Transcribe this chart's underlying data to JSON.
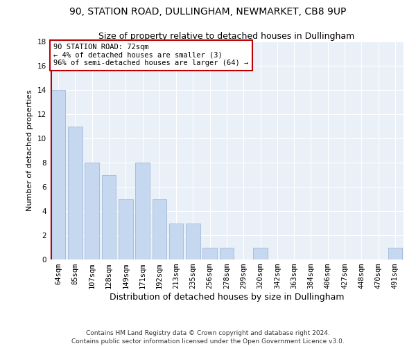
{
  "title": "90, STATION ROAD, DULLINGHAM, NEWMARKET, CB8 9UP",
  "subtitle": "Size of property relative to detached houses in Dullingham",
  "xlabel": "Distribution of detached houses by size in Dullingham",
  "ylabel": "Number of detached properties",
  "categories": [
    "64sqm",
    "85sqm",
    "107sqm",
    "128sqm",
    "149sqm",
    "171sqm",
    "192sqm",
    "213sqm",
    "235sqm",
    "256sqm",
    "278sqm",
    "299sqm",
    "320sqm",
    "342sqm",
    "363sqm",
    "384sqm",
    "406sqm",
    "427sqm",
    "448sqm",
    "470sqm",
    "491sqm"
  ],
  "values": [
    14,
    11,
    8,
    7,
    5,
    8,
    5,
    3,
    3,
    1,
    1,
    0,
    1,
    0,
    0,
    0,
    0,
    0,
    0,
    0,
    1
  ],
  "bar_color": "#c5d8f0",
  "bar_edge_color": "#a0b8d8",
  "highlight_color": "#c00000",
  "annotation_text": "90 STATION ROAD: 72sqm\n← 4% of detached houses are smaller (3)\n96% of semi-detached houses are larger (64) →",
  "annotation_box_color": "#ffffff",
  "annotation_box_edge": "#c00000",
  "ylim": [
    0,
    18
  ],
  "yticks": [
    0,
    2,
    4,
    6,
    8,
    10,
    12,
    14,
    16,
    18
  ],
  "background_color": "#eaf0f8",
  "grid_color": "#ffffff",
  "footer": "Contains HM Land Registry data © Crown copyright and database right 2024.\nContains public sector information licensed under the Open Government Licence v3.0.",
  "title_fontsize": 10,
  "subtitle_fontsize": 9,
  "xlabel_fontsize": 9,
  "ylabel_fontsize": 8,
  "tick_fontsize": 7.5,
  "annotation_fontsize": 7.5,
  "footer_fontsize": 6.5
}
